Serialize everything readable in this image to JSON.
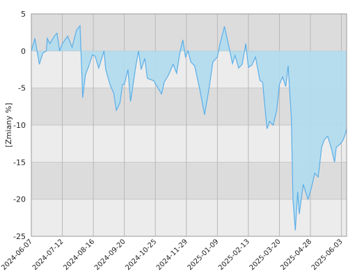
{
  "chart_data": {
    "type": "area",
    "ylabel": "[Zmiany %]",
    "x": [
      "2024-06-07",
      "2024-06-11",
      "2024-06-16",
      "2024-06-20",
      "2024-06-24",
      "2024-06-25",
      "2024-06-28",
      "2024-07-03",
      "2024-07-06",
      "2024-07-09",
      "2024-07-12",
      "2024-07-18",
      "2024-07-23",
      "2024-07-28",
      "2024-08-01",
      "2024-08-04",
      "2024-08-07",
      "2024-08-11",
      "2024-08-15",
      "2024-08-18",
      "2024-08-22",
      "2024-08-28",
      "2024-08-30",
      "2024-09-04",
      "2024-09-08",
      "2024-09-11",
      "2024-09-15",
      "2024-09-18",
      "2024-09-20",
      "2024-09-24",
      "2024-09-27",
      "2024-10-03",
      "2024-10-06",
      "2024-10-09",
      "2024-10-13",
      "2024-10-16",
      "2024-10-23",
      "2024-10-26",
      "2024-11-01",
      "2024-11-04",
      "2024-11-09",
      "2024-11-14",
      "2024-11-18",
      "2024-11-22",
      "2024-11-25",
      "2024-11-28",
      "2024-12-01",
      "2024-12-05",
      "2024-12-10",
      "2024-12-17",
      "2024-12-23",
      "2024-12-29",
      "2025-01-03",
      "2025-01-09",
      "2025-01-12",
      "2025-01-17",
      "2025-01-23",
      "2025-01-26",
      "2025-01-29",
      "2025-02-02",
      "2025-02-06",
      "2025-02-10",
      "2025-02-13",
      "2025-02-17",
      "2025-02-21",
      "2025-02-26",
      "2025-03-01",
      "2025-03-04",
      "2025-03-06",
      "2025-03-09",
      "2025-03-13",
      "2025-03-17",
      "2025-03-20",
      "2025-03-24",
      "2025-03-28",
      "2025-03-31",
      "2025-04-04",
      "2025-04-06",
      "2025-04-09",
      "2025-04-12",
      "2025-04-14",
      "2025-04-19",
      "2025-04-25",
      "2025-04-29",
      "2025-05-03",
      "2025-05-07",
      "2025-05-11",
      "2025-05-14",
      "2025-05-18",
      "2025-05-22",
      "2025-05-26",
      "2025-05-28",
      "2025-06-02",
      "2025-06-05",
      "2025-06-08",
      "2025-06-09"
    ],
    "series": [
      {
        "color": "#5aaee8",
        "fill": "#b0dcee",
        "values": [
          0,
          1.7,
          -1.8,
          -0.3,
          0,
          1.7,
          1.0,
          2.0,
          2.4,
          0,
          1.0,
          2.0,
          0.5,
          2.8,
          3.4,
          -6.3,
          -3.2,
          -2.0,
          -0.5,
          -0.7,
          -2.3,
          0,
          -2.5,
          -4.6,
          -5.7,
          -8.0,
          -7.0,
          -4.5,
          -4.5,
          -2.5,
          -6.8,
          -2.0,
          0,
          -2.5,
          -1.0,
          -3.7,
          -4.0,
          -4.6,
          -5.8,
          -4.2,
          -3.2,
          -1.8,
          -3.0,
          0,
          1.5,
          -0.8,
          0,
          -1.5,
          -2.0,
          -5.3,
          -8.6,
          -5.0,
          -1.5,
          -0.8,
          1.0,
          3.3,
          0,
          -1.7,
          -0.6,
          -2.3,
          -1.8,
          1.0,
          -2.2,
          -1.9,
          -0.8,
          -4.0,
          -4.2,
          -8.0,
          -10.5,
          -9.5,
          -10.0,
          -8.0,
          -4.5,
          -3.5,
          -4.8,
          -2.0,
          -9.0,
          -20.0,
          -24.2,
          -19.0,
          -22.0,
          -18.0,
          -20.0,
          -18.5,
          -16.5,
          -17.0,
          -13.0,
          -12.0,
          -11.5,
          -13.0,
          -15.0,
          -13.0,
          -12.5,
          -12.0,
          -11.0,
          -10.4
        ]
      }
    ],
    "xlim": [
      "2024-06-07",
      "2025-06-09"
    ],
    "xticks": [
      "2024-06-07",
      "2024-07-12",
      "2024-08-16",
      "2024-09-20",
      "2024-10-25",
      "2024-11-29",
      "2025-01-09",
      "2025-02-13",
      "2025-03-20",
      "2025-04-28",
      "2025-06-03"
    ],
    "ylim": [
      -25,
      5
    ],
    "yticks": [
      5,
      0,
      -5,
      -10,
      -15,
      -20,
      -25
    ],
    "grid": true
  }
}
